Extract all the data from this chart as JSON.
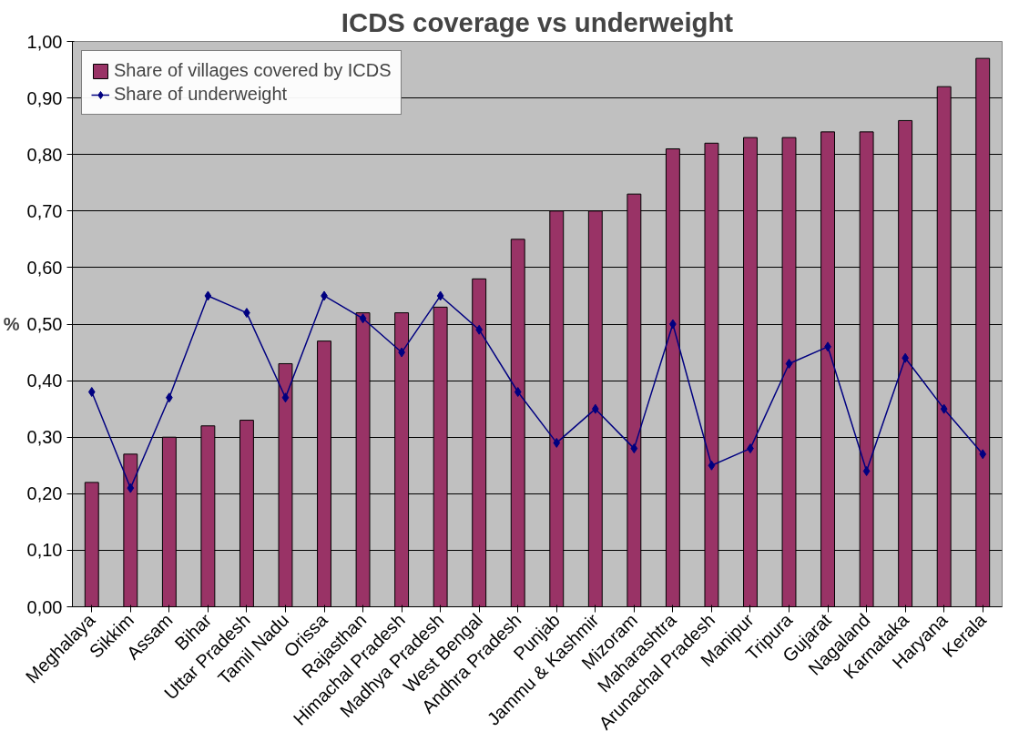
{
  "chart_data": {
    "type": "bar",
    "title": "ICDS coverage vs underweight",
    "ylabel": "%",
    "categories": [
      "Meghalaya",
      "Sikkim",
      "Assam",
      "Bihar",
      "Uttar Pradesh",
      "Tamil Nadu",
      "Orissa",
      "Rajasthan",
      "Himachal Pradesh",
      "Madhya Pradesh",
      "West Bengal",
      "Andhra Pradesh",
      "Punjab",
      "Jammu & Kashmir",
      "Mizoram",
      "Maharashtra",
      "Arunachal Pradesh",
      "Manipur",
      "Tripura",
      "Gujarat",
      "Nagaland",
      "Karnataka",
      "Haryana",
      "Kerala"
    ],
    "series": [
      {
        "name": "Share of villages covered by ICDS",
        "color": "#993366",
        "values": [
          0.22,
          0.27,
          0.3,
          0.32,
          0.33,
          0.43,
          0.47,
          0.52,
          0.52,
          0.53,
          0.58,
          0.65,
          0.7,
          0.7,
          0.73,
          0.81,
          0.82,
          0.83,
          0.83,
          0.84,
          0.84,
          0.86,
          0.92,
          0.97
        ]
      },
      {
        "type": "line",
        "name": "Share of underweight",
        "color": "#000080",
        "marker": "diamond",
        "values": [
          0.38,
          0.21,
          0.37,
          0.55,
          0.52,
          0.37,
          0.55,
          0.51,
          0.45,
          0.55,
          0.49,
          0.38,
          0.29,
          0.35,
          0.28,
          0.5,
          0.25,
          0.28,
          0.43,
          0.46,
          0.24,
          0.44,
          0.35,
          0.27
        ]
      }
    ],
    "ylim": [
      0,
      1
    ],
    "yticks": [
      {
        "value": 0,
        "label": "0,00"
      },
      {
        "value": 0.1,
        "label": "0,10"
      },
      {
        "value": 0.2,
        "label": "0,20"
      },
      {
        "value": 0.3,
        "label": "0,30"
      },
      {
        "value": 0.4,
        "label": "0,40"
      },
      {
        "value": 0.5,
        "label": "0,50"
      },
      {
        "value": 0.6,
        "label": "0,60"
      },
      {
        "value": 0.7,
        "label": "0,70"
      },
      {
        "value": 0.8,
        "label": "0,80"
      },
      {
        "value": 0.9,
        "label": "0,90"
      },
      {
        "value": 1,
        "label": "1,00"
      }
    ],
    "grid": "y",
    "legend": "top left"
  }
}
